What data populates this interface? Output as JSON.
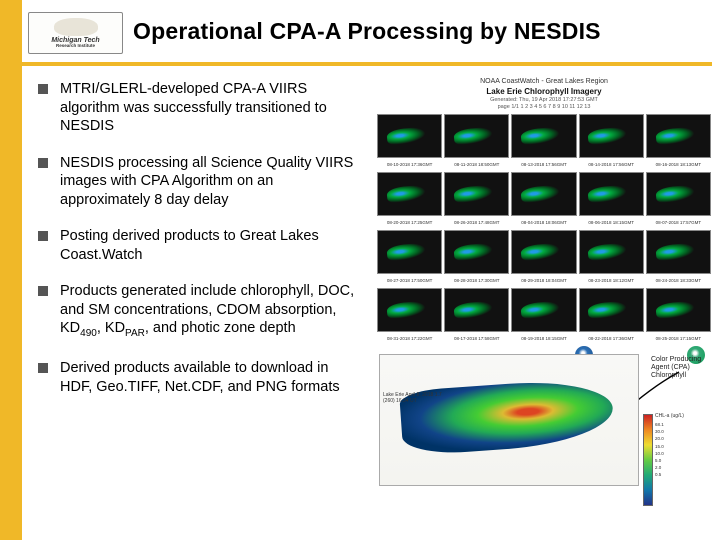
{
  "colors": {
    "gold": "#f0b828",
    "bullet": "#555555",
    "text": "#000000"
  },
  "logo": {
    "line1": "Michigan Tech",
    "line2": "Research Institute"
  },
  "title": "Operational CPA-A Processing by NESDIS",
  "bullets": [
    "MTRI/GLERL-developed CPA-A VIIRS algorithm was successfully transitioned to NESDIS",
    "NESDIS processing all Science Quality VIIRS images with CPA Algorithm on an approximately 8 day delay",
    "Posting derived products to Great Lakes Coast.Watch",
    "Products generated include chlorophyll, DOC, and SM concentrations, CDOM absorption, KD|490|, KD|PAR|, and photic zone depth",
    "Derived products available to download in HDF, Geo.TIFF, Net.CDF, and PNG formats"
  ],
  "panel": {
    "header1": "NOAA CoastWatch - Great Lakes Region",
    "header2": "Lake Erie Chlorophyll Imagery",
    "header3": "Generated: Thu, 19 Apr 2018 17:27:53 GMT",
    "header4": "page 1/1   1 2 3 4 5 6 7 8 9 10 11 12 13",
    "thumb_rows": [
      [
        "08-10-2018 17:36GMT",
        "08-11-2018 18:50GMT",
        "08-13-2018 17:56GMT",
        "08-14-2018 17:56GMT",
        "08-16-2018 18:13GMT"
      ],
      [
        "08-20-2018 17:25GMT",
        "08-26-2018 17:48GMT",
        "08-04-2018 18:06GMT",
        "08-06-2018 18:15GMT",
        "08-07-2018 17:57GMT"
      ],
      [
        "08-27-2018 17:50GMT",
        "08-28-2018 17:30GMT",
        "08-29-2018 18:04GMT",
        "08-23-2018 18:12GMT",
        "08-24-2018 18:33GMT"
      ],
      [
        "08-31-2018 17:22GMT",
        "08-17-2018 17:58GMT",
        "08-19-2018 18:15GMT",
        "08-22-2018 17:36GMT",
        "08-25-2018 17:15GMT"
      ]
    ],
    "cpa_label1": "Color Producing Agent (CPA)",
    "cpa_label2": "Chlorophyll",
    "map_caption": "Lake Erie\nApril 8, 2018\n1.7 (260)\n16:34 UT",
    "legend_label": "CHL-a (ug/L)",
    "legend_ticks": [
      "68.1",
      "30.0",
      "20.0",
      "15.0",
      "10.0",
      "5.0",
      "2.0",
      "0.5"
    ]
  }
}
